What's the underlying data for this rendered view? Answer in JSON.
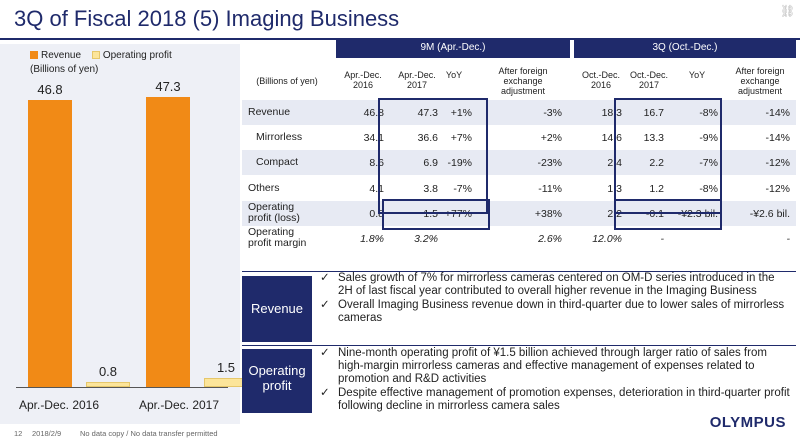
{
  "title": "3Q of Fiscal 2018 (5) Imaging Business",
  "corner_icon": "link-icon",
  "colors": {
    "navy": "#1f2a6b",
    "revenue": "#f18a16",
    "operating_profit": "#fce59a",
    "band": "#e7eaf3"
  },
  "chart_data": {
    "type": "bar",
    "categories": [
      "Apr.-Dec. 2016",
      "Apr.-Dec. 2017"
    ],
    "series": [
      {
        "name": "Revenue",
        "values": [
          46.8,
          47.3
        ]
      },
      {
        "name": "Operating profit",
        "values": [
          0.8,
          1.5
        ]
      }
    ],
    "unit_label": "(Billions of yen)",
    "ylim": [
      0,
      50
    ],
    "legend": "top"
  },
  "table": {
    "band_9m": "9M (Apr.-Dec.)",
    "band_3q": "3Q (Oct.-Dec.)",
    "unit": "(Billions of yen)",
    "columns": [
      "Apr.-Dec.\n2016",
      "Apr.-Dec.\n2017",
      "YoY",
      "After foreign\nexchange\nadjustment",
      "Oct.-Dec.\n2016",
      "Oct.-Dec.\n2017",
      "YoY",
      "After foreign\nexchange\nadjustment"
    ],
    "rows": [
      {
        "label": "Revenue",
        "cells": [
          "46.8",
          "47.3",
          "+1%",
          "-3%",
          "18.3",
          "16.7",
          "-8%",
          "-14%"
        ]
      },
      {
        "label": "Mirrorless",
        "cells": [
          "34.1",
          "36.6",
          "+7%",
          "+2%",
          "14.6",
          "13.3",
          "-9%",
          "-14%"
        ]
      },
      {
        "label": "Compact",
        "cells": [
          "8.6",
          "6.9",
          "-19%",
          "-23%",
          "2.4",
          "2.2",
          "-7%",
          "-12%"
        ]
      },
      {
        "label": "Others",
        "cells": [
          "4.1",
          "3.8",
          "-7%",
          "-11%",
          "1.3",
          "1.2",
          "-8%",
          "-12%"
        ]
      },
      {
        "label": "Operating\nprofit (loss)",
        "cells": [
          "0.8",
          "1.5",
          "+77%",
          "+38%",
          "2.2",
          "-0.1",
          "-¥2.3 bil.",
          "-¥2.6 bil."
        ]
      },
      {
        "label": "Operating\nprofit margin",
        "cells": [
          "1.8%",
          "3.2%",
          "",
          "2.6%",
          "12.0%",
          "-",
          "",
          "-"
        ]
      }
    ]
  },
  "revenue_box": {
    "label": "Revenue",
    "bullets": [
      "Sales growth of 7% for mirrorless cameras centered on OM-D series introduced in the 2H of last fiscal year contributed to overall higher revenue in the Imaging Business",
      "Overall Imaging Business revenue down in third-quarter due to lower sales of mirrorless cameras"
    ]
  },
  "profit_box": {
    "label": "Operating\nprofit",
    "bullets": [
      "Nine-month operating profit of ¥1.5 billion achieved through larger ratio of sales from high-margin mirrorless cameras and effective management of expenses related to promotion and R&D activities",
      "Despite effective management of promotion expenses, deterioration in third-quarter profit following decline in mirrorless camera sales"
    ]
  },
  "check_glyph": "✓",
  "footer": {
    "page": "12",
    "date": "2018/2/9",
    "note": "No data copy / No data transfer permitted"
  },
  "logo": "OLYMPUS"
}
